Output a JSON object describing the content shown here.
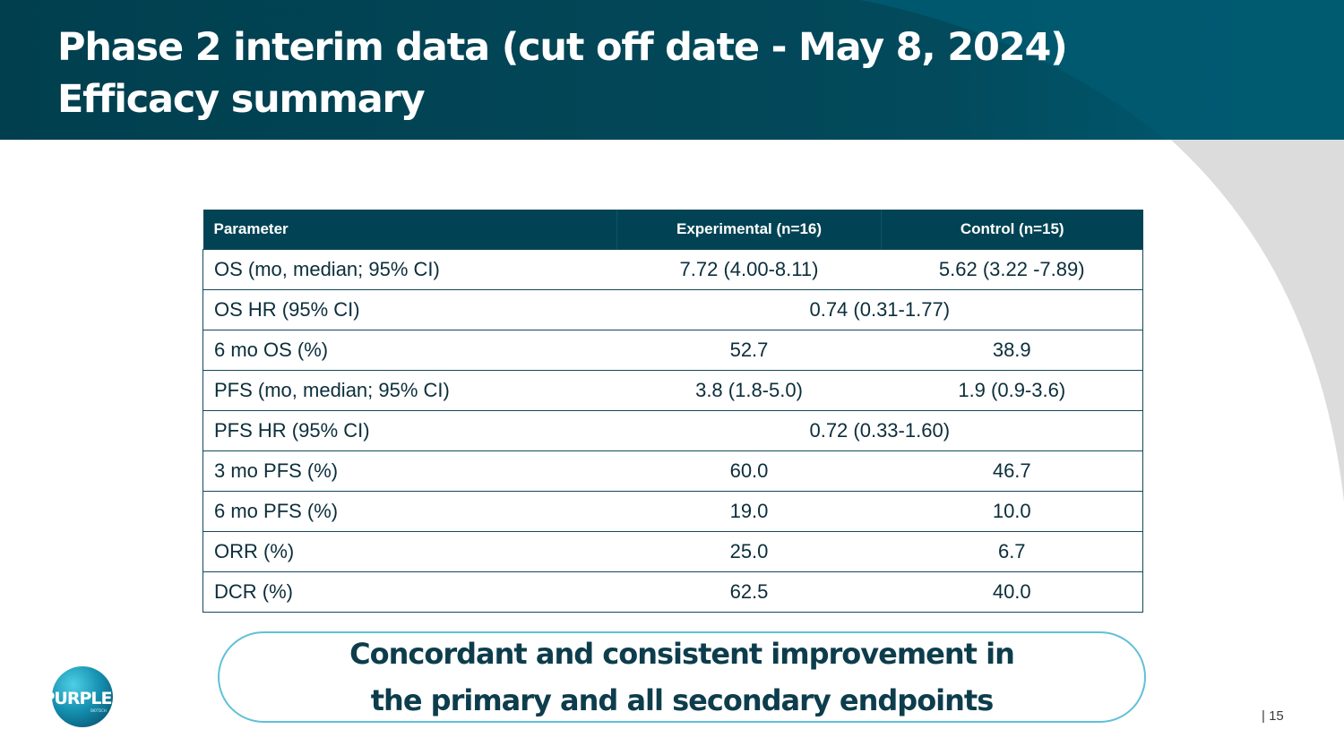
{
  "slide": {
    "title_line1": "Phase 2 interim data (cut off date - May 8, 2024)",
    "title_line2": "Efficacy summary",
    "page_number": "| 15"
  },
  "table": {
    "headers": [
      "Parameter",
      "Experimental (n=16)",
      "Control (n=15)"
    ],
    "rows": [
      {
        "parameter": "OS (mo, median; 95% CI)",
        "experimental": "7.72 (4.00-8.11)",
        "control": "5.62 (3.22 -7.89)"
      },
      {
        "parameter": "OS HR (95% CI)",
        "combined": "0.74 (0.31-1.77)"
      },
      {
        "parameter": "6 mo OS (%)",
        "experimental": "52.7",
        "control": "38.9"
      },
      {
        "parameter": "PFS (mo, median; 95% CI)",
        "experimental": "3.8 (1.8-5.0)",
        "control": "1.9 (0.9-3.6)"
      },
      {
        "parameter": "PFS HR (95% CI)",
        "combined": "0.72 (0.33-1.60)"
      },
      {
        "parameter": "3 mo PFS (%)",
        "experimental": "60.0",
        "control": "46.7"
      },
      {
        "parameter": "6 mo PFS (%)",
        "experimental": "19.0",
        "control": "10.0"
      },
      {
        "parameter": "ORR (%)",
        "experimental": "25.0",
        "control": "6.7"
      },
      {
        "parameter": "DCR (%)",
        "experimental": "62.5",
        "control": "40.0"
      }
    ]
  },
  "callout": {
    "line1": "Concordant and consistent improvement in",
    "line2": "the primary and all secondary endpoints"
  },
  "logo": {
    "text": "PURPLE",
    "subtext": "BIOTECH"
  },
  "colors": {
    "header_dark": "#01404f",
    "header_light": "#005c72",
    "table_header": "#014354",
    "callout_border": "#5fc1d7",
    "text_dark": "#0d3d4c",
    "swoosh_grey": "#dcdcdc"
  }
}
